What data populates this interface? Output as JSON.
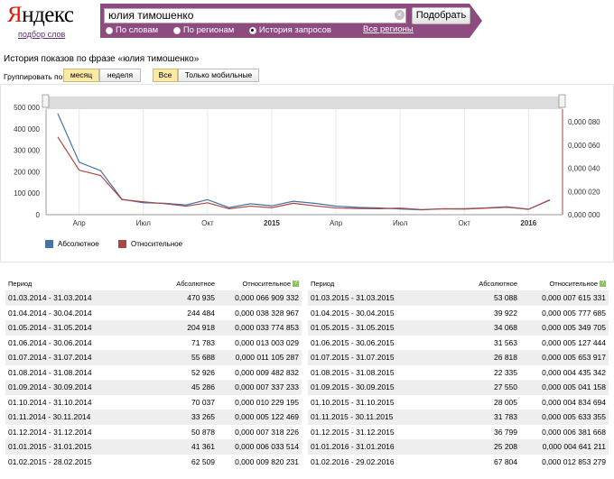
{
  "header": {
    "logo_first": "Я",
    "logo_rest": "ндекс",
    "logo_sub": "подбор слов",
    "query": "юлия тимошенко",
    "submit_label": "Подобрать",
    "modes": [
      "По словам",
      "По регионам",
      "История запросов"
    ],
    "selected_mode": 2,
    "regions_link": "Все регионы"
  },
  "page_title": "История показов по фразе «юлия тимошенко»",
  "grouping": {
    "label": "Группировать по:",
    "period_buttons": [
      "месяц",
      "неделя"
    ],
    "selected_period": "месяц",
    "device_buttons": [
      "Все",
      "Только мобильные"
    ],
    "selected_device": "Все"
  },
  "chart_data": {
    "type": "line",
    "x": [
      "03.2014",
      "04.2014",
      "05.2014",
      "06.2014",
      "07.2014",
      "08.2014",
      "09.2014",
      "10.2014",
      "11.2014",
      "12.2014",
      "01.2015",
      "02.2015",
      "03.2015",
      "04.2015",
      "05.2015",
      "06.2015",
      "07.2015",
      "08.2015",
      "09.2015",
      "10.2015",
      "11.2015",
      "12.2015",
      "01.2016",
      "02.2016"
    ],
    "x_tick_labels": [
      "Апр",
      "Июл",
      "Окт",
      "2015",
      "Апр",
      "Июл",
      "Окт",
      "2016"
    ],
    "y_left_ticks": [
      "0",
      "100 000",
      "200 000",
      "300 000",
      "400 000",
      "500 000"
    ],
    "y_right_ticks": [
      "0,000 000",
      "0,000 020",
      "0,000 040",
      "0,000 060",
      "0,000 080"
    ],
    "ylim_left": [
      0,
      500000
    ],
    "ylim_right": [
      0,
      8e-05
    ],
    "series": [
      {
        "name": "Абсолютное",
        "axis": "left",
        "color": "#4572a7",
        "values": [
          470935,
          244484,
          204918,
          71783,
          55688,
          52926,
          45286,
          70037,
          33265,
          50878,
          41361,
          62509,
          53088,
          39922,
          34068,
          31563,
          26818,
          22335,
          27550,
          28005,
          31783,
          36799,
          25208,
          67804
        ]
      },
      {
        "name": "Относительное",
        "axis": "right",
        "color": "#aa4643",
        "values": [
          6.6909332e-05,
          3.8328967e-05,
          3.3774853e-05,
          1.3003029e-05,
          1.1105287e-05,
          9.482832e-06,
          7.337233e-06,
          1.0229195e-05,
          5.122469e-06,
          7.318226e-06,
          6.033514e-06,
          9.820231e-06,
          7.615331e-06,
          5.777685e-06,
          5.349705e-06,
          5.127444e-06,
          5.653917e-06,
          4.435342e-06,
          5.041158e-06,
          4.834694e-06,
          5.633355e-06,
          6.381668e-06,
          4.641211e-06,
          1.2853279e-05
        ]
      }
    ],
    "legend_position": "bottom-left",
    "grid": true
  },
  "table": {
    "headers": [
      "Период",
      "Абсолютное",
      "Относительное"
    ],
    "left_rows": [
      [
        "01.03.2014 - 31.03.2014",
        "470 935",
        "0,000 066 909 332"
      ],
      [
        "01.04.2014 - 30.04.2014",
        "244 484",
        "0,000 038 328 967"
      ],
      [
        "01.05.2014 - 31.05.2014",
        "204 918",
        "0,000 033 774 853"
      ],
      [
        "01.06.2014 - 30.06.2014",
        "71 783",
        "0,000 013 003 029"
      ],
      [
        "01.07.2014 - 31.07.2014",
        "55 688",
        "0,000 011 105 287"
      ],
      [
        "01.08.2014 - 31.08.2014",
        "52 926",
        "0,000 009 482 832"
      ],
      [
        "01.09.2014 - 30.09.2014",
        "45 286",
        "0,000 007 337 233"
      ],
      [
        "01.10.2014 - 31.10.2014",
        "70 037",
        "0,000 010 229 195"
      ],
      [
        "01.11.2014 - 30.11.2014",
        "33 265",
        "0,000 005 122 469"
      ],
      [
        "01.12.2014 - 31.12.2014",
        "50 878",
        "0,000 007 318 226"
      ],
      [
        "01.01.2015 - 31.01.2015",
        "41 361",
        "0,000 006 033 514"
      ],
      [
        "01.02.2015 - 28.02.2015",
        "62 509",
        "0,000 009 820 231"
      ]
    ],
    "right_rows": [
      [
        "01.03.2015 - 31.03.2015",
        "53 088",
        "0,000 007 615 331"
      ],
      [
        "01.04.2015 - 30.04.2015",
        "39 922",
        "0,000 005 777 685"
      ],
      [
        "01.05.2015 - 31.05.2015",
        "34 068",
        "0,000 005 349 705"
      ],
      [
        "01.06.2015 - 30.06.2015",
        "31 563",
        "0,000 005 127 444"
      ],
      [
        "01.07.2015 - 31.07.2015",
        "26 818",
        "0,000 005 653 917"
      ],
      [
        "01.08.2015 - 31.08.2015",
        "22 335",
        "0,000 004 435 342"
      ],
      [
        "01.09.2015 - 30.09.2015",
        "27 550",
        "0,000 005 041 158"
      ],
      [
        "01.10.2015 - 31.10.2015",
        "28 005",
        "0,000 004 834 694"
      ],
      [
        "01.11.2015 - 30.11.2015",
        "31 783",
        "0,000 005 633 355"
      ],
      [
        "01.12.2015 - 31.12.2015",
        "36 799",
        "0,000 006 381 668"
      ],
      [
        "01.01.2016 - 31.01.2016",
        "25 208",
        "0,000 004 641 211"
      ],
      [
        "01.02.2016 - 29.02.2016",
        "67 804",
        "0,000 012 853 279"
      ]
    ]
  }
}
